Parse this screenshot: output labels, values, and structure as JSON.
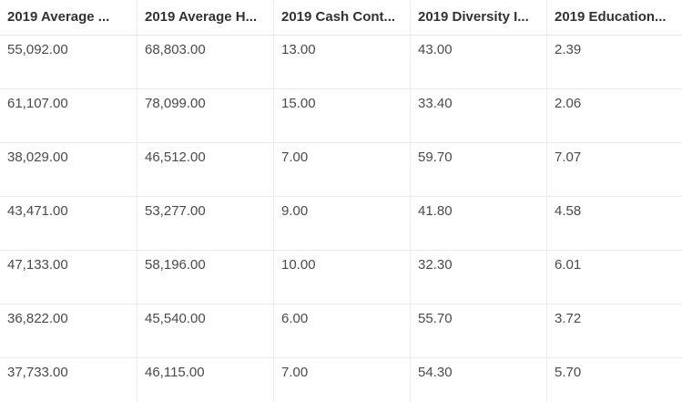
{
  "table": {
    "columns": [
      "2019 Average ...",
      "2019 Average H...",
      "2019 Cash Cont...",
      "2019 Diversity I...",
      "2019 Education..."
    ],
    "rows": [
      [
        "55,092.00",
        "68,803.00",
        "13.00",
        "43.00",
        "2.39"
      ],
      [
        "61,107.00",
        "78,099.00",
        "15.00",
        "33.40",
        "2.06"
      ],
      [
        "38,029.00",
        "46,512.00",
        "7.00",
        "59.70",
        "7.07"
      ],
      [
        "43,471.00",
        "53,277.00",
        "9.00",
        "41.80",
        "4.58"
      ],
      [
        "47,133.00",
        "58,196.00",
        "10.00",
        "32.30",
        "6.01"
      ],
      [
        "36,822.00",
        "45,540.00",
        "6.00",
        "55.70",
        "3.72"
      ],
      [
        "37,733.00",
        "46,115.00",
        "7.00",
        "54.30",
        "5.70"
      ]
    ]
  }
}
